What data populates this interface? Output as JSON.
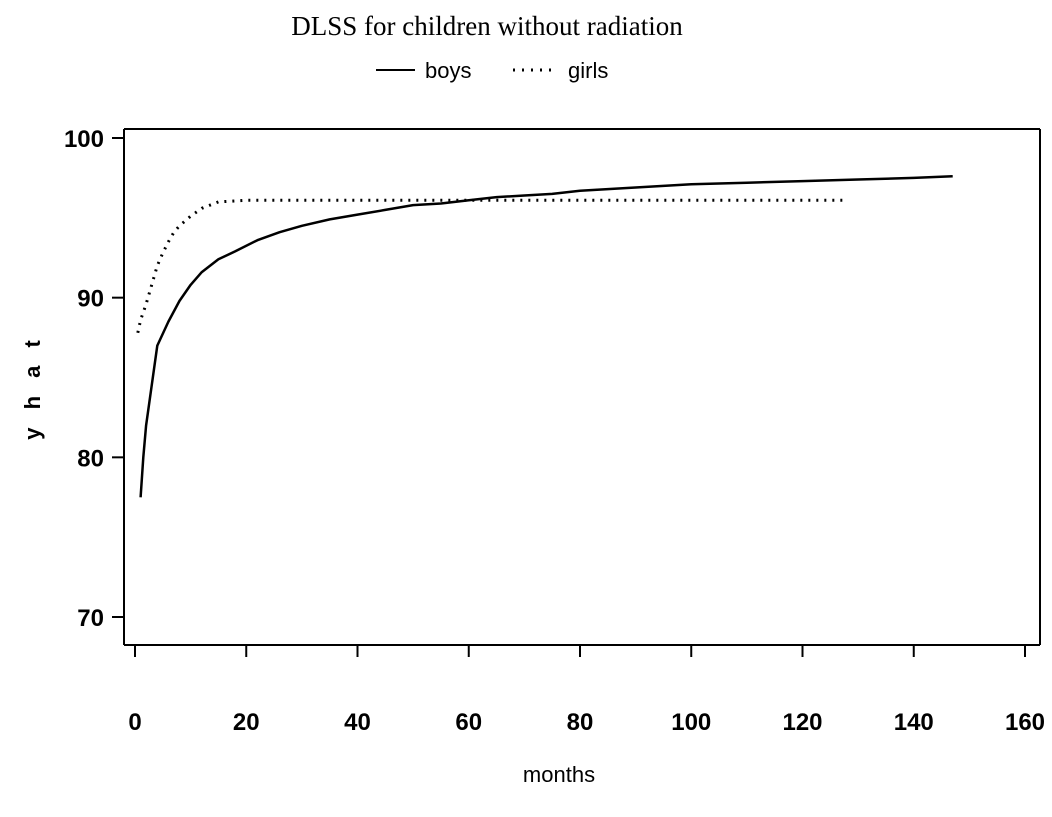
{
  "chart_data": {
    "type": "line",
    "title": "DLSS for children without radiation",
    "xlabel": "months",
    "ylabel": "y h a t",
    "xlim": [
      0,
      160
    ],
    "ylim": [
      70,
      100
    ],
    "x_ticks": [
      "0",
      "20",
      "40",
      "60",
      "80",
      "100",
      "120",
      "140",
      "160"
    ],
    "y_ticks": [
      "70",
      "80",
      "90",
      "100"
    ],
    "grid": false,
    "legend_position": "top-center",
    "series": [
      {
        "name": "boys",
        "style": "solid",
        "color": "#000000",
        "points": [
          [
            1,
            77.5
          ],
          [
            1.5,
            80
          ],
          [
            2,
            82
          ],
          [
            3,
            84.5
          ],
          [
            4,
            87
          ],
          [
            6,
            88.5
          ],
          [
            8,
            89.8
          ],
          [
            10,
            90.8
          ],
          [
            12,
            91.6
          ],
          [
            15,
            92.4
          ],
          [
            18,
            92.9
          ],
          [
            22,
            93.6
          ],
          [
            26,
            94.1
          ],
          [
            30,
            94.5
          ],
          [
            35,
            94.9
          ],
          [
            40,
            95.2
          ],
          [
            45,
            95.5
          ],
          [
            50,
            95.8
          ],
          [
            55,
            95.9
          ],
          [
            60,
            96.1
          ],
          [
            65,
            96.3
          ],
          [
            70,
            96.4
          ],
          [
            75,
            96.5
          ],
          [
            80,
            96.7
          ],
          [
            90,
            96.9
          ],
          [
            100,
            97.1
          ],
          [
            110,
            97.2
          ],
          [
            120,
            97.3
          ],
          [
            130,
            97.4
          ],
          [
            140,
            97.5
          ],
          [
            147,
            97.6
          ]
        ]
      },
      {
        "name": "girls",
        "style": "dotted",
        "color": "#000000",
        "points": [
          [
            0.5,
            87.8
          ],
          [
            1,
            88.6
          ],
          [
            2,
            89.6
          ],
          [
            3,
            90.8
          ],
          [
            4,
            92
          ],
          [
            5,
            92.8
          ],
          [
            6,
            93.5
          ],
          [
            7,
            94.1
          ],
          [
            8,
            94.5
          ],
          [
            10,
            95.1
          ],
          [
            12,
            95.6
          ],
          [
            15,
            96
          ],
          [
            20,
            96.1
          ],
          [
            40,
            96.1
          ],
          [
            60,
            96.1
          ],
          [
            80,
            96.1
          ],
          [
            100,
            96.1
          ],
          [
            120,
            96.1
          ],
          [
            128,
            96.1
          ]
        ]
      }
    ]
  }
}
